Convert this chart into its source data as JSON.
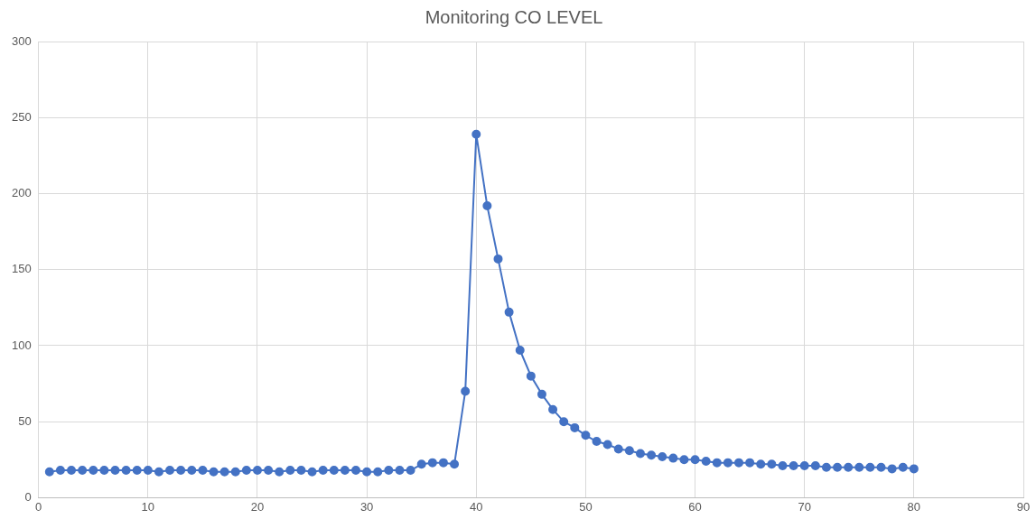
{
  "chart_data": {
    "type": "line",
    "title": "Monitoring CO LEVEL",
    "x": [
      1,
      2,
      3,
      4,
      5,
      6,
      7,
      8,
      9,
      10,
      11,
      12,
      13,
      14,
      15,
      16,
      17,
      18,
      19,
      20,
      21,
      22,
      23,
      24,
      25,
      26,
      27,
      28,
      29,
      30,
      31,
      32,
      33,
      34,
      35,
      36,
      37,
      38,
      39,
      40,
      41,
      42,
      43,
      44,
      45,
      46,
      47,
      48,
      49,
      50,
      51,
      52,
      53,
      54,
      55,
      56,
      57,
      58,
      59,
      60,
      61,
      62,
      63,
      64,
      65,
      66,
      67,
      68,
      69,
      70,
      71,
      72,
      73,
      74,
      75,
      76,
      77,
      78,
      79,
      80
    ],
    "series": [
      {
        "color": "#4472c4",
        "values": [
          17,
          18,
          18,
          18,
          18,
          18,
          18,
          18,
          18,
          18,
          17,
          18,
          18,
          18,
          18,
          17,
          17,
          17,
          18,
          18,
          18,
          17,
          18,
          18,
          17,
          18,
          18,
          18,
          18,
          17,
          17,
          18,
          18,
          18,
          22,
          23,
          23,
          22,
          70,
          239,
          192,
          157,
          122,
          97,
          80,
          68,
          58,
          50,
          46,
          41,
          37,
          35,
          32,
          31,
          29,
          28,
          27,
          26,
          25,
          25,
          24,
          23,
          23,
          23,
          23,
          22,
          22,
          21,
          21,
          21,
          21,
          20,
          20,
          20,
          20,
          20,
          20,
          19,
          20,
          19
        ]
      }
    ],
    "xlim": [
      0,
      90
    ],
    "xticks": [
      0,
      10,
      20,
      30,
      40,
      50,
      60,
      70,
      80,
      90
    ],
    "ylim": [
      0,
      300
    ],
    "yticks": [
      0,
      50,
      100,
      150,
      200,
      250,
      300
    ],
    "grid": true,
    "legend": false,
    "marker": "circle",
    "line_style": "solid"
  }
}
